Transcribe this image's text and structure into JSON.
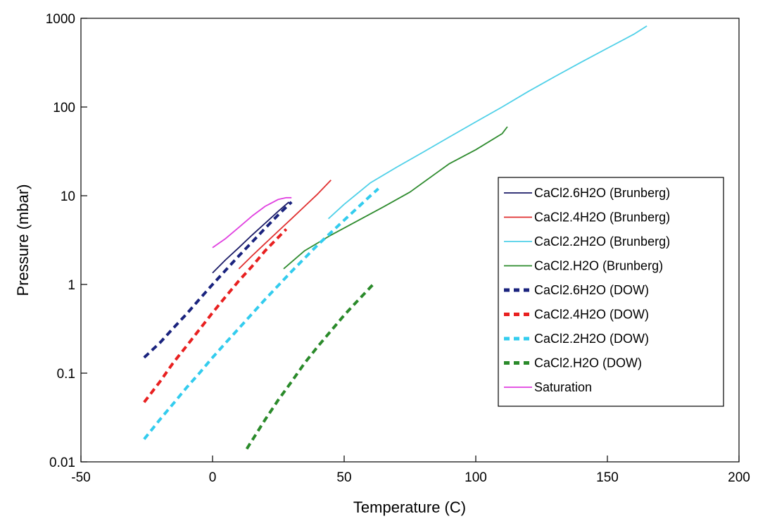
{
  "chart_data": {
    "type": "line",
    "title": "",
    "xlabel": "Temperature (C)",
    "ylabel": "Pressure (mbar)",
    "xlim": [
      -50,
      200
    ],
    "ylim": [
      0.01,
      1000
    ],
    "y_scale": "log",
    "x_ticks": [
      "-50",
      "0",
      "50",
      "100",
      "150",
      "200"
    ],
    "y_ticks": [
      "0.01",
      "0.1",
      "1",
      "10",
      "100",
      "1000"
    ],
    "grid": false,
    "legend_position": "right",
    "series": [
      {
        "name": "CaCl2.6H2O (Brunberg)",
        "color": "#1a1a66",
        "style": "solid",
        "x": [
          0,
          5,
          10,
          15,
          20,
          25,
          29
        ],
        "y": [
          1.35,
          1.9,
          2.6,
          3.6,
          4.9,
          6.7,
          8.5
        ]
      },
      {
        "name": "CaCl2.4H2O (Brunberg)",
        "color": "#e03030",
        "style": "solid",
        "x": [
          10,
          15,
          20,
          25,
          30,
          35,
          40,
          45
        ],
        "y": [
          1.5,
          2.1,
          2.9,
          4.0,
          5.5,
          7.6,
          10.5,
          15
        ]
      },
      {
        "name": "CaCl2.2H2O (Brunberg)",
        "color": "#4fd0e8",
        "style": "solid",
        "x": [
          44,
          50,
          60,
          70,
          80,
          90,
          100,
          110,
          120,
          130,
          140,
          150,
          160,
          165
        ],
        "y": [
          5.5,
          8,
          14,
          21,
          31,
          46,
          68,
          100,
          150,
          220,
          320,
          460,
          660,
          820
        ]
      },
      {
        "name": "CaCl2.H2O (Brunberg)",
        "color": "#2e8b2e",
        "style": "solid",
        "x": [
          27,
          35,
          45,
          55,
          65,
          75,
          85,
          90,
          100,
          110,
          112
        ],
        "y": [
          1.5,
          2.4,
          3.6,
          5.2,
          7.5,
          11,
          18,
          23,
          33,
          50,
          60
        ]
      },
      {
        "name": "CaCl2.6H2O (DOW)",
        "color": "#1a237e",
        "style": "dashed",
        "x": [
          -26,
          -20,
          -15,
          -10,
          -5,
          0,
          5,
          10,
          15,
          20,
          25,
          30
        ],
        "y": [
          0.15,
          0.22,
          0.32,
          0.46,
          0.68,
          1.0,
          1.45,
          2.1,
          3.0,
          4.3,
          6.1,
          8.5
        ]
      },
      {
        "name": "CaCl2.4H2O (DOW)",
        "color": "#e82020",
        "style": "dashed",
        "x": [
          -26,
          -20,
          -15,
          -10,
          -5,
          0,
          5,
          10,
          15,
          20,
          25,
          28
        ],
        "y": [
          0.047,
          0.08,
          0.13,
          0.2,
          0.31,
          0.48,
          0.73,
          1.1,
          1.6,
          2.4,
          3.4,
          4.2
        ]
      },
      {
        "name": "CaCl2.2H2O (DOW)",
        "color": "#33ccee",
        "style": "dashed",
        "x": [
          -26,
          -20,
          -15,
          -10,
          -5,
          0,
          5,
          10,
          20,
          30,
          40,
          50,
          60,
          63
        ],
        "y": [
          0.018,
          0.03,
          0.045,
          0.068,
          0.1,
          0.15,
          0.22,
          0.32,
          0.68,
          1.4,
          2.8,
          5.3,
          10,
          12
        ]
      },
      {
        "name": "CaCl2.H2O (DOW)",
        "color": "#2a8a2a",
        "style": "dashed",
        "x": [
          13,
          20,
          25,
          30,
          35,
          40,
          45,
          50,
          55,
          61
        ],
        "y": [
          0.014,
          0.03,
          0.05,
          0.08,
          0.13,
          0.2,
          0.3,
          0.45,
          0.65,
          1.0
        ]
      },
      {
        "name": "Saturation",
        "color": "#e040e0",
        "style": "solid",
        "x": [
          0,
          5,
          10,
          15,
          20,
          25,
          28,
          30
        ],
        "y": [
          2.6,
          3.3,
          4.4,
          5.9,
          7.6,
          9.1,
          9.5,
          9.5
        ]
      }
    ]
  }
}
